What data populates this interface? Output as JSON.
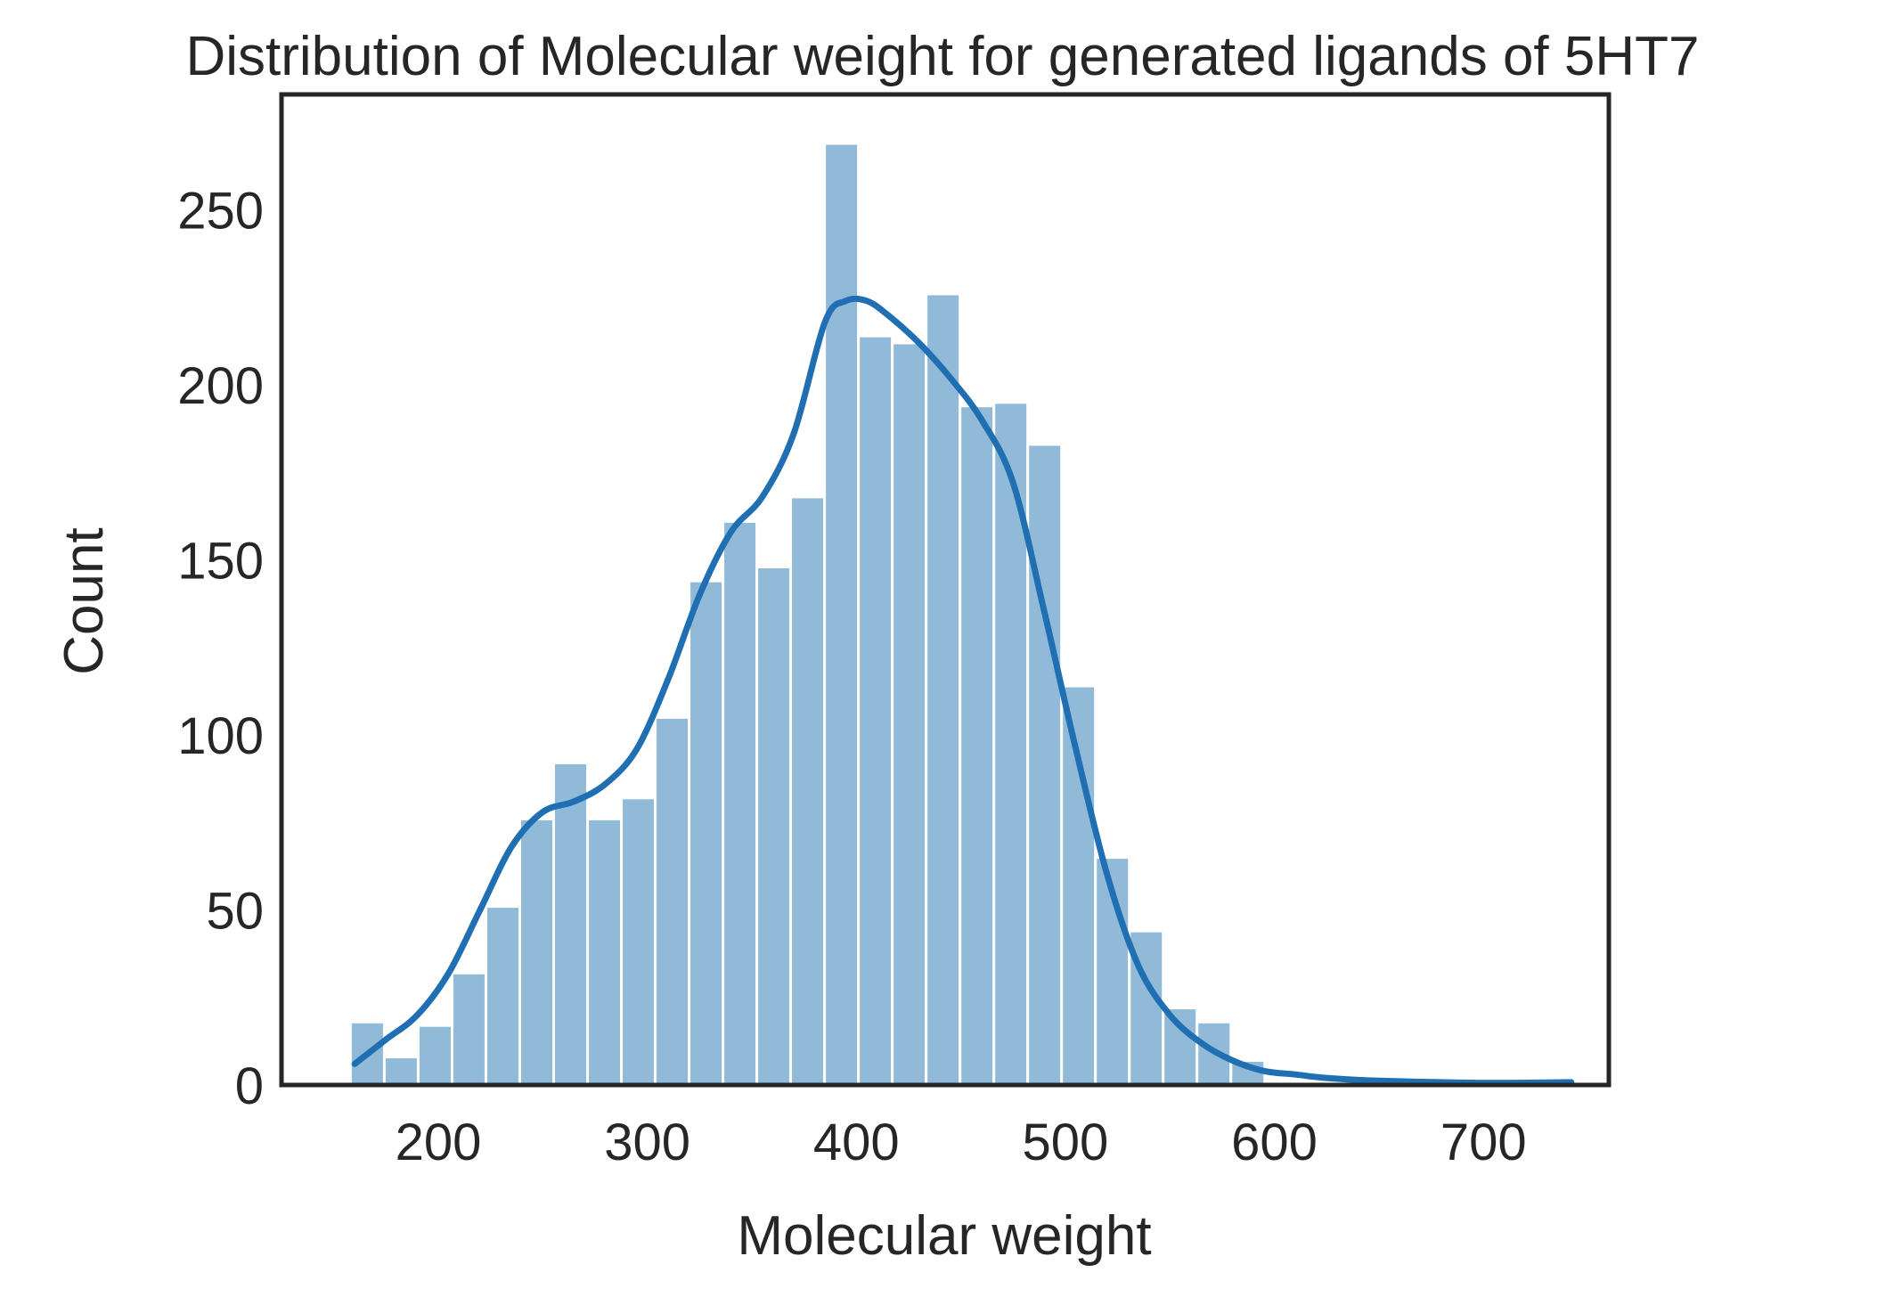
{
  "chart_data": {
    "type": "bar",
    "subtype": "histogram",
    "title": "Distribution of Molecular weight for generated ligands of 5HT7",
    "xlabel": "Molecular weight",
    "ylabel": "Count",
    "xlim": [
      125,
      760
    ],
    "ylim": [
      0,
      283
    ],
    "xticks": [
      200,
      300,
      400,
      500,
      600,
      700
    ],
    "yticks": [
      0,
      50,
      100,
      150,
      200,
      250
    ],
    "bin_width": 16.2,
    "bins": [
      {
        "x0": 158.0,
        "count": 18
      },
      {
        "x0": 174.2,
        "count": 8
      },
      {
        "x0": 190.4,
        "count": 17
      },
      {
        "x0": 206.6,
        "count": 32
      },
      {
        "x0": 222.8,
        "count": 51
      },
      {
        "x0": 239.0,
        "count": 76
      },
      {
        "x0": 255.2,
        "count": 92
      },
      {
        "x0": 271.4,
        "count": 76
      },
      {
        "x0": 287.6,
        "count": 82
      },
      {
        "x0": 303.8,
        "count": 105
      },
      {
        "x0": 320.0,
        "count": 144
      },
      {
        "x0": 336.2,
        "count": 161
      },
      {
        "x0": 352.4,
        "count": 148
      },
      {
        "x0": 368.6,
        "count": 168
      },
      {
        "x0": 384.8,
        "count": 269
      },
      {
        "x0": 401.0,
        "count": 214
      },
      {
        "x0": 417.2,
        "count": 212
      },
      {
        "x0": 433.4,
        "count": 226
      },
      {
        "x0": 449.6,
        "count": 194
      },
      {
        "x0": 465.8,
        "count": 195
      },
      {
        "x0": 482.0,
        "count": 183
      },
      {
        "x0": 498.2,
        "count": 114
      },
      {
        "x0": 514.4,
        "count": 65
      },
      {
        "x0": 530.6,
        "count": 44
      },
      {
        "x0": 546.8,
        "count": 22
      },
      {
        "x0": 563.0,
        "count": 18
      },
      {
        "x0": 579.2,
        "count": 7
      },
      {
        "x0": 595.4,
        "count": 1
      },
      {
        "x0": 611.6,
        "count": 1
      },
      {
        "x0": 627.8,
        "count": 0
      },
      {
        "x0": 644.0,
        "count": 0
      },
      {
        "x0": 660.2,
        "count": 0
      },
      {
        "x0": 676.4,
        "count": 0
      },
      {
        "x0": 692.6,
        "count": 0
      },
      {
        "x0": 708.8,
        "count": 0
      },
      {
        "x0": 725.0,
        "count": 1
      }
    ],
    "kde": {
      "x": [
        160,
        175,
        190,
        205,
        220,
        235,
        250,
        265,
        280,
        295,
        310,
        325,
        340,
        355,
        370,
        385,
        395,
        405,
        415,
        430,
        445,
        460,
        475,
        490,
        505,
        520,
        535,
        550,
        565,
        580,
        595,
        610,
        625,
        650,
        700,
        742
      ],
      "y": [
        6,
        13,
        20,
        32,
        50,
        68,
        78,
        81,
        86,
        96,
        116,
        140,
        158,
        168,
        186,
        218,
        224,
        224,
        220,
        212,
        202,
        190,
        172,
        135,
        96,
        60,
        34,
        20,
        12,
        7,
        4,
        3,
        2,
        1.2,
        0.6,
        0.8
      ]
    },
    "grid": false,
    "legend": "none",
    "colors": {
      "bar": "#91bad9",
      "bar_edge": "#ffffff",
      "kde_line": "#1f6fb2",
      "axes": "#262626",
      "text": "#262626"
    }
  }
}
